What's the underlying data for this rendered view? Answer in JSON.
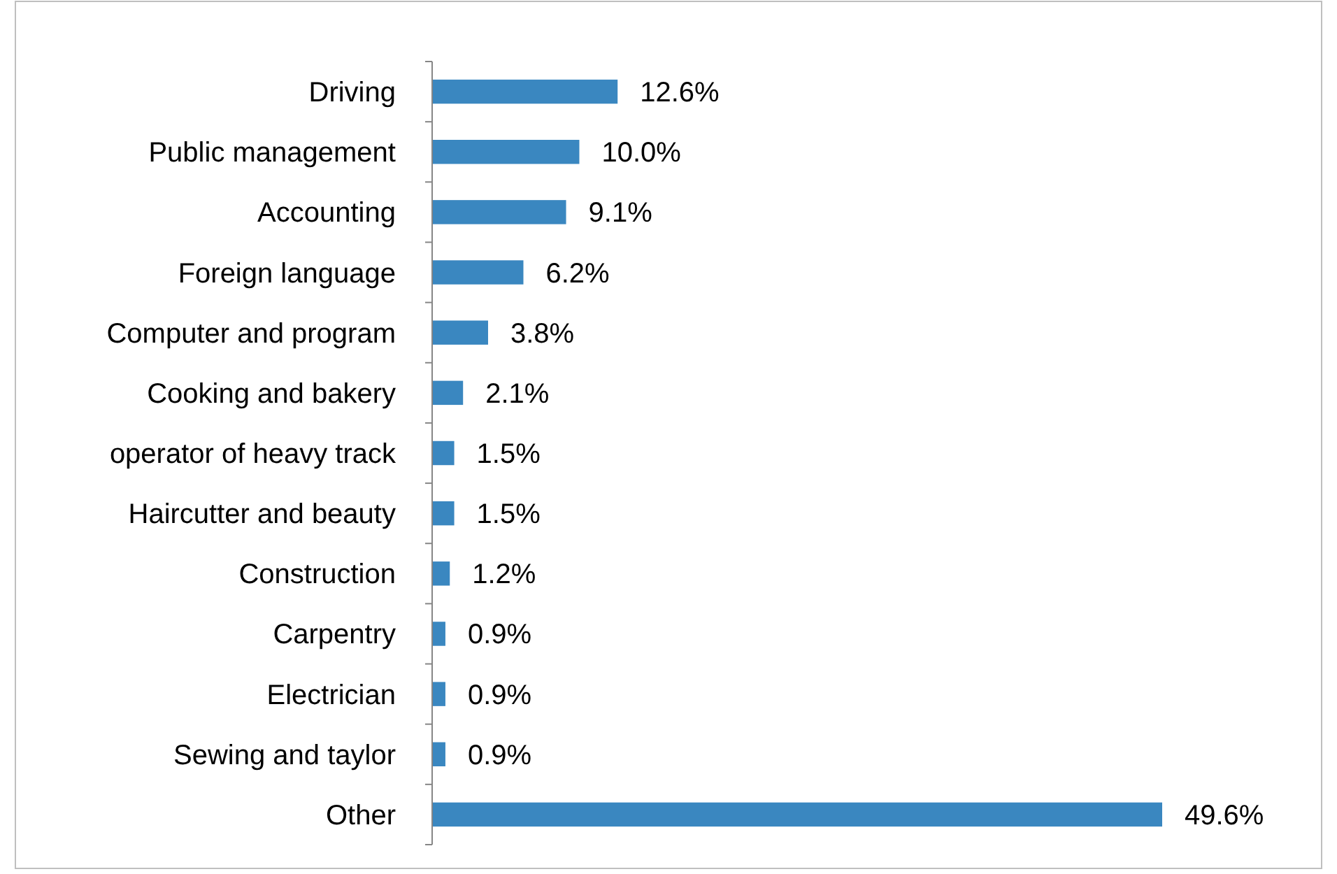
{
  "chart_data": {
    "type": "bar",
    "orientation": "horizontal",
    "categories": [
      "Driving",
      "Public management",
      "Accounting",
      "Foreign language",
      "Computer and program",
      "Cooking and bakery",
      "operator of heavy track",
      "Haircutter and beauty",
      "Construction",
      "Carpentry",
      "Electrician",
      "Sewing and taylor",
      "Other"
    ],
    "values": [
      12.6,
      10.0,
      9.1,
      6.2,
      3.8,
      2.1,
      1.5,
      1.5,
      1.2,
      0.9,
      0.9,
      0.9,
      49.6
    ],
    "value_labels": [
      "12.6%",
      "10.0%",
      "9.1%",
      "6.2%",
      "3.8%",
      "2.1%",
      "1.5%",
      "1.5%",
      "1.2%",
      "0.9%",
      "0.9%",
      "0.9%",
      "49.6%"
    ],
    "color": "#3a87c0"
  }
}
